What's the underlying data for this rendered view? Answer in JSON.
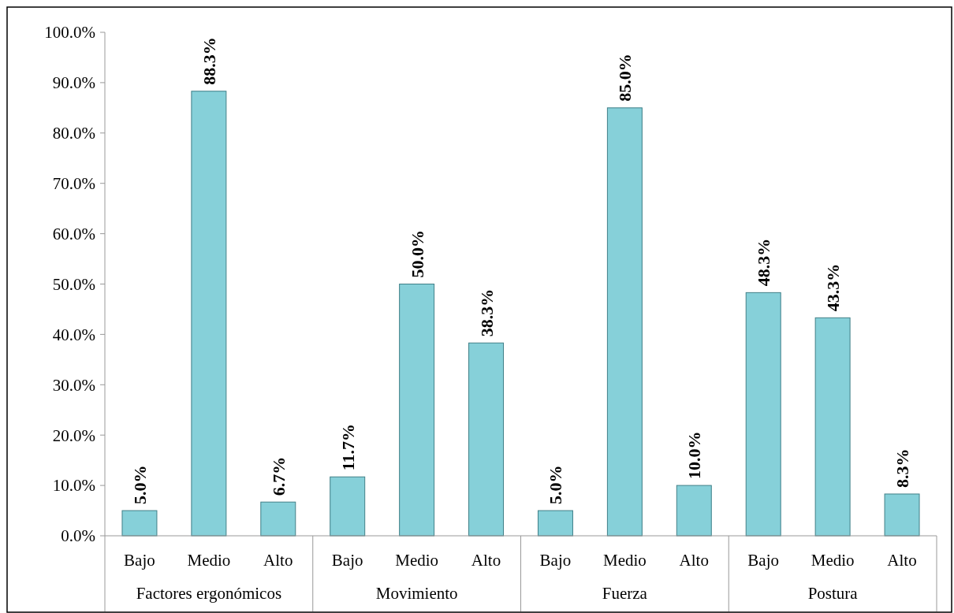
{
  "chart_data": {
    "type": "bar",
    "categories": [
      "Bajo",
      "Medio",
      "Alto",
      "Bajo",
      "Medio",
      "Alto",
      "Bajo",
      "Medio",
      "Alto",
      "Bajo",
      "Medio",
      "Alto"
    ],
    "values": [
      5.0,
      88.3,
      6.7,
      11.7,
      50.0,
      38.3,
      5.0,
      85.0,
      10.0,
      48.3,
      43.3,
      8.3
    ],
    "value_labels": [
      "5.0%",
      "88.3%",
      "6.7%",
      "11.7%",
      "50.0%",
      "38.3%",
      "5.0%",
      "85.0%",
      "10.0%",
      "48.3%",
      "43.3%",
      "8.3%"
    ],
    "color": "#86d0d9",
    "annotations": [
      "Factores ergonómicos",
      "Movimiento",
      "Fuerza",
      "Postura"
    ],
    "ylim": [
      0,
      100
    ],
    "yticks": [
      {
        "value": 0,
        "label": "0.0%"
      },
      {
        "value": 10,
        "label": "10.0%"
      },
      {
        "value": 20,
        "label": "20.0%"
      },
      {
        "value": 30,
        "label": "30.0%"
      },
      {
        "value": 40,
        "label": "40.0%"
      },
      {
        "value": 50,
        "label": "50.0%"
      },
      {
        "value": 60,
        "label": "60.0%"
      },
      {
        "value": 70,
        "label": "70.0%"
      },
      {
        "value": 80,
        "label": "80.0%"
      },
      {
        "value": 90,
        "label": "90.0%"
      },
      {
        "value": 100,
        "label": "100.0%"
      }
    ],
    "grid": false
  }
}
